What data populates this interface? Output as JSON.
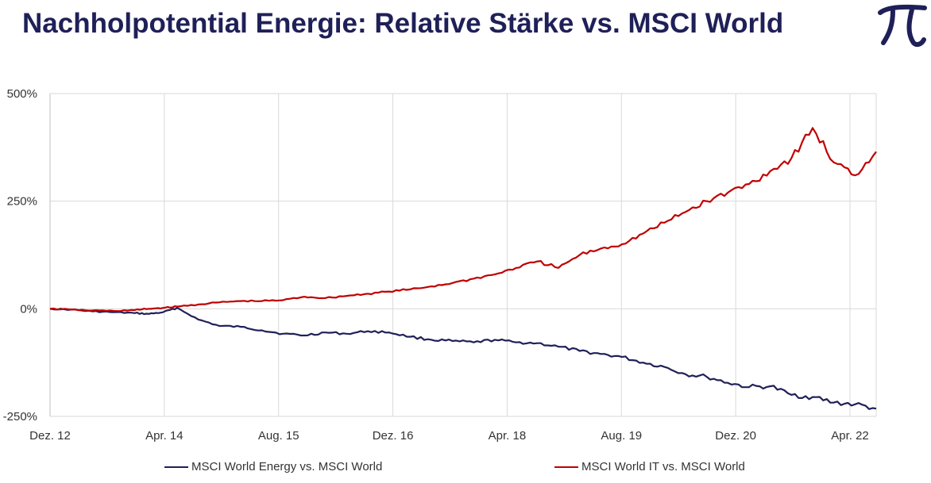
{
  "title": "Nachholpotential Energie: Relative Stärke vs. MSCI World",
  "logo": {
    "icon": "pi-icon",
    "color": "#1f2058"
  },
  "colors": {
    "energy": "#1f2058",
    "it": "#c00000",
    "grid": "#d9d9d9",
    "axis_text": "#333333"
  },
  "chart_data": {
    "type": "line",
    "title": "Nachholpotential Energie: Relative Stärke vs. MSCI World",
    "xlabel": "",
    "ylabel": "",
    "x_ticks": [
      "Dez. 12",
      "Apr. 14",
      "Aug. 15",
      "Dez. 16",
      "Apr. 18",
      "Aug. 19",
      "Dez. 20",
      "Apr. 22"
    ],
    "y_ticks": [
      "500%",
      "250%",
      "0%",
      "-250%"
    ],
    "ylim": [
      -250,
      500
    ],
    "xlim": [
      "2012-12",
      "2022-09"
    ],
    "grid": true,
    "legend": "bottom",
    "series": [
      {
        "name": "MSCI World Energy vs. MSCI World",
        "color": "#1f2058",
        "x": [
          "2012-12",
          "2013-03",
          "2013-06",
          "2013-09",
          "2013-12",
          "2014-02",
          "2014-04",
          "2014-06",
          "2014-09",
          "2014-12",
          "2015-03",
          "2015-06",
          "2015-09",
          "2015-12",
          "2016-03",
          "2016-06",
          "2016-09",
          "2016-12",
          "2017-03",
          "2017-06",
          "2017-09",
          "2017-12",
          "2018-03",
          "2018-06",
          "2018-09",
          "2018-12",
          "2019-03",
          "2019-06",
          "2019-09",
          "2019-12",
          "2020-03",
          "2020-06",
          "2020-09",
          "2020-12",
          "2021-03",
          "2021-06",
          "2021-09",
          "2021-12",
          "2022-03",
          "2022-06",
          "2022-09"
        ],
        "y": [
          0,
          -2,
          -6,
          -8,
          -10,
          -12,
          -8,
          2,
          -25,
          -40,
          -42,
          -50,
          -58,
          -62,
          -55,
          -58,
          -52,
          -55,
          -65,
          -72,
          -75,
          -78,
          -72,
          -78,
          -80,
          -88,
          -98,
          -105,
          -112,
          -125,
          -135,
          -152,
          -158,
          -172,
          -182,
          -180,
          -200,
          -205,
          -218,
          -222,
          -232
        ]
      },
      {
        "name": "MSCI World IT vs. MSCI World",
        "color": "#c00000",
        "x": [
          "2012-12",
          "2013-03",
          "2013-06",
          "2013-09",
          "2013-12",
          "2014-02",
          "2014-04",
          "2014-06",
          "2014-09",
          "2014-12",
          "2015-03",
          "2015-06",
          "2015-09",
          "2015-12",
          "2016-03",
          "2016-06",
          "2016-09",
          "2016-12",
          "2017-03",
          "2017-06",
          "2017-09",
          "2017-12",
          "2018-03",
          "2018-06",
          "2018-09",
          "2018-12",
          "2019-03",
          "2019-06",
          "2019-09",
          "2019-12",
          "2020-03",
          "2020-06",
          "2020-09",
          "2020-12",
          "2021-03",
          "2021-06",
          "2021-09",
          "2021-12",
          "2022-03",
          "2022-06",
          "2022-09"
        ],
        "y": [
          0,
          -2,
          -4,
          -5,
          -3,
          0,
          2,
          5,
          10,
          15,
          18,
          18,
          20,
          28,
          25,
          30,
          35,
          40,
          45,
          52,
          60,
          70,
          80,
          95,
          110,
          95,
          125,
          140,
          150,
          175,
          200,
          225,
          250,
          270,
          290,
          320,
          350,
          420,
          340,
          310,
          365
        ]
      }
    ]
  }
}
